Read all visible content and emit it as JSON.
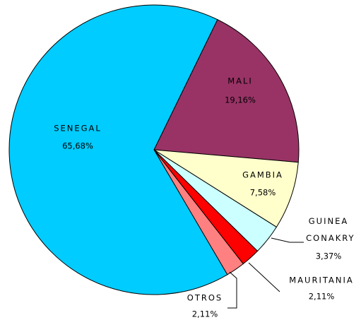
{
  "chart_data": {
    "type": "pie",
    "categories": [
      "MALI",
      "GAMBIA",
      "GUINEA CONAKRY",
      "MAURITANIA",
      "OTROS",
      "SENEGAL"
    ],
    "values": [
      19.16,
      7.58,
      3.37,
      2.11,
      2.11,
      65.68
    ],
    "value_labels": [
      "19,16%",
      "7,58%",
      "3,37%",
      "2,11%",
      "2,11%",
      "65,68%"
    ],
    "colors": [
      "#993366",
      "#ffffcc",
      "#ccffff",
      "#ff0000",
      "#ff8080",
      "#00ccff"
    ]
  }
}
